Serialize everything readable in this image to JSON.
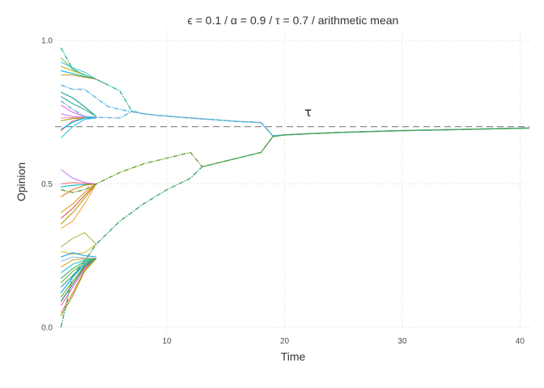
{
  "chart_data": {
    "type": "line",
    "title": "ϵ = 0.1 / α = 0.9 / τ = 0.7 / arithmetic mean",
    "xlabel": "Time",
    "ylabel": "Opinion",
    "xlim": [
      0.5,
      40.8
    ],
    "ylim": [
      -0.02,
      1.04
    ],
    "x_ticks": [
      10,
      20,
      30,
      40
    ],
    "y_ticks": [
      0.0,
      0.5,
      1.0
    ],
    "x_tick_labels": [
      "10",
      "20",
      "30",
      "40"
    ],
    "y_tick_labels": [
      "0.0",
      "0.5",
      "1.0"
    ],
    "grid": true,
    "legend": "none",
    "reference_line": {
      "value": 0.7,
      "label": "τ",
      "label_x": 22,
      "label_y": 0.735
    },
    "series": [
      {
        "color": "#2fb9a6",
        "lead": true,
        "x": [
          1,
          2,
          3,
          4,
          5,
          6,
          7,
          8,
          9,
          10,
          11,
          12,
          13,
          14,
          15,
          16,
          17,
          18,
          19,
          20,
          22,
          25,
          30,
          35,
          40.8
        ],
        "y": [
          0.975,
          0.9,
          0.88,
          0.865,
          0.845,
          0.825,
          0.755,
          0.745,
          0.74,
          0.737,
          0.733,
          0.73,
          0.727,
          0.724,
          0.721,
          0.718,
          0.716,
          0.714,
          0.668,
          0.671,
          0.675,
          0.68,
          0.686,
          0.69,
          0.695
        ]
      },
      {
        "color": "#56b4e9",
        "lead": true,
        "x": [
          1,
          2,
          3,
          4,
          5,
          6,
          7,
          8,
          9,
          10,
          11,
          12,
          13,
          14,
          15,
          16,
          17,
          18,
          19,
          20,
          22,
          25,
          30,
          35,
          40.8
        ],
        "y": [
          0.845,
          0.83,
          0.83,
          0.8,
          0.77,
          0.76,
          0.752,
          0.745,
          0.74,
          0.737,
          0.733,
          0.73,
          0.727,
          0.724,
          0.721,
          0.718,
          0.716,
          0.714,
          0.668,
          0.671,
          0.675,
          0.68,
          0.686,
          0.69,
          0.695
        ]
      },
      {
        "color": "#6aaed6",
        "lead": true,
        "x": [
          1,
          2,
          3,
          4,
          5,
          6,
          7,
          8,
          9,
          10,
          11,
          12,
          13,
          14,
          15,
          16,
          17,
          18,
          19,
          20,
          22,
          25,
          30,
          35,
          40.8
        ],
        "y": [
          0.79,
          0.76,
          0.735,
          0.732,
          0.731,
          0.73,
          0.752,
          0.745,
          0.74,
          0.737,
          0.733,
          0.73,
          0.727,
          0.724,
          0.721,
          0.718,
          0.716,
          0.714,
          0.668,
          0.671,
          0.675,
          0.68,
          0.686,
          0.69,
          0.695
        ]
      },
      {
        "color": "#6b9f2e",
        "lead": true,
        "x": [
          1,
          2,
          3,
          4,
          5,
          6,
          7,
          8,
          9,
          10,
          11,
          12,
          13,
          14,
          15,
          16,
          17,
          18,
          19,
          20,
          22,
          25,
          30,
          35,
          40.8
        ],
        "y": [
          0.48,
          0.47,
          0.48,
          0.5,
          0.52,
          0.54,
          0.555,
          0.57,
          0.58,
          0.59,
          0.6,
          0.61,
          0.56,
          0.57,
          0.58,
          0.59,
          0.6,
          0.61,
          0.665,
          0.671,
          0.675,
          0.68,
          0.686,
          0.69,
          0.695
        ]
      },
      {
        "color": "#3fa86b",
        "lead": true,
        "x": [
          1,
          2,
          3,
          4,
          5,
          6,
          7,
          8,
          9,
          10,
          11,
          12,
          13,
          14,
          15,
          16,
          17,
          18,
          19,
          20,
          22,
          25,
          30,
          35,
          40.8
        ],
        "y": [
          0.0,
          0.18,
          0.23,
          0.29,
          0.33,
          0.37,
          0.4,
          0.43,
          0.455,
          0.48,
          0.5,
          0.52,
          0.56,
          0.57,
          0.58,
          0.59,
          0.6,
          0.61,
          0.665,
          0.671,
          0.675,
          0.68,
          0.686,
          0.69,
          0.695
        ]
      },
      {
        "color": "#8cbf3f",
        "x": [
          1,
          2,
          3,
          4,
          5
        ],
        "y": [
          0.94,
          0.9,
          0.88,
          0.865,
          0.845
        ]
      },
      {
        "color": "#3ec8d8",
        "x": [
          1,
          2,
          3,
          4
        ],
        "y": [
          0.925,
          0.905,
          0.89,
          0.865
        ]
      },
      {
        "color": "#b8b82a",
        "x": [
          1,
          2,
          3,
          4
        ],
        "y": [
          0.91,
          0.895,
          0.88,
          0.865
        ]
      },
      {
        "color": "#00bfc4",
        "x": [
          1,
          2,
          3,
          4
        ],
        "y": [
          0.895,
          0.885,
          0.875,
          0.865
        ]
      },
      {
        "color": "#c79a1a",
        "x": [
          1,
          2,
          3,
          4
        ],
        "y": [
          0.88,
          0.88,
          0.872,
          0.865
        ]
      },
      {
        "color": "#1e9e8a",
        "x": [
          1,
          2,
          3,
          4
        ],
        "y": [
          0.82,
          0.8,
          0.77,
          0.735
        ]
      },
      {
        "color": "#2db3a0",
        "x": [
          1,
          2,
          3,
          4
        ],
        "y": [
          0.805,
          0.78,
          0.76,
          0.735
        ]
      },
      {
        "color": "#f8766d",
        "x": [
          1,
          2,
          3,
          4
        ],
        "y": [
          0.685,
          0.72,
          0.73,
          0.732
        ]
      },
      {
        "color": "#e76bf3",
        "x": [
          1,
          2,
          3,
          4
        ],
        "y": [
          0.775,
          0.75,
          0.735,
          0.733
        ]
      },
      {
        "color": "#c77cff",
        "x": [
          1,
          2,
          3,
          4
        ],
        "y": [
          0.745,
          0.735,
          0.733,
          0.732
        ]
      },
      {
        "color": "#ff8fb1",
        "x": [
          1,
          2,
          3,
          4
        ],
        "y": [
          0.73,
          0.731,
          0.732,
          0.732
        ]
      },
      {
        "color": "#a3a500",
        "x": [
          1,
          2,
          3,
          4
        ],
        "y": [
          0.72,
          0.728,
          0.73,
          0.731
        ]
      },
      {
        "color": "#00a9ff",
        "x": [
          1,
          2,
          3,
          4
        ],
        "y": [
          0.69,
          0.715,
          0.73,
          0.731
        ]
      },
      {
        "color": "#35c2e0",
        "x": [
          1,
          2,
          3,
          4
        ],
        "y": [
          0.66,
          0.7,
          0.725,
          0.73
        ]
      },
      {
        "color": "#c77cff",
        "x": [
          1,
          2,
          3,
          4
        ],
        "y": [
          0.55,
          0.52,
          0.505,
          0.5
        ]
      },
      {
        "color": "#f8766d",
        "x": [
          1,
          2,
          3,
          4
        ],
        "y": [
          0.5,
          0.505,
          0.502,
          0.5
        ]
      },
      {
        "color": "#00bfc4",
        "x": [
          1,
          2,
          3,
          4
        ],
        "y": [
          0.49,
          0.495,
          0.498,
          0.5
        ]
      },
      {
        "color": "#e7861b",
        "x": [
          1,
          2,
          3,
          4
        ],
        "y": [
          0.455,
          0.48,
          0.495,
          0.5
        ]
      },
      {
        "color": "#d4a017",
        "x": [
          1,
          2,
          3,
          4
        ],
        "y": [
          0.4,
          0.43,
          0.47,
          0.5
        ]
      },
      {
        "color": "#e05a4f",
        "x": [
          1,
          2,
          3,
          4
        ],
        "y": [
          0.38,
          0.415,
          0.46,
          0.5
        ]
      },
      {
        "color": "#b8a000",
        "x": [
          1,
          2,
          3,
          4
        ],
        "y": [
          0.36,
          0.4,
          0.45,
          0.5
        ]
      },
      {
        "color": "#f4a742",
        "x": [
          1,
          2,
          3,
          4
        ],
        "y": [
          0.345,
          0.37,
          0.43,
          0.5
        ]
      },
      {
        "color": "#a0c050",
        "x": [
          1,
          2,
          3,
          4
        ],
        "y": [
          0.28,
          0.31,
          0.33,
          0.29
        ]
      },
      {
        "color": "#d9c23b",
        "x": [
          1,
          2,
          3,
          4
        ],
        "y": [
          0.265,
          0.255,
          0.26,
          0.29
        ]
      },
      {
        "color": "#1e9ee0",
        "x": [
          1,
          2,
          3,
          4
        ],
        "y": [
          0.245,
          0.26,
          0.25,
          0.245
        ]
      },
      {
        "color": "#8fc2e8",
        "x": [
          1,
          2,
          3,
          4
        ],
        "y": [
          0.23,
          0.245,
          0.242,
          0.24
        ]
      },
      {
        "color": "#d6a21a",
        "x": [
          1,
          2,
          3,
          4
        ],
        "y": [
          0.21,
          0.235,
          0.24,
          0.24
        ]
      },
      {
        "color": "#2cc0d0",
        "x": [
          1,
          2,
          3,
          4
        ],
        "y": [
          0.19,
          0.22,
          0.235,
          0.24
        ]
      },
      {
        "color": "#35b779",
        "x": [
          1,
          2,
          3,
          4
        ],
        "y": [
          0.17,
          0.205,
          0.23,
          0.24
        ]
      },
      {
        "color": "#79b23c",
        "x": [
          1,
          2,
          3,
          4
        ],
        "y": [
          0.155,
          0.195,
          0.225,
          0.24
        ]
      },
      {
        "color": "#2a9d8f",
        "x": [
          1,
          2,
          3,
          4
        ],
        "y": [
          0.14,
          0.18,
          0.22,
          0.24
        ]
      },
      {
        "color": "#00a9ff",
        "x": [
          1,
          2,
          3,
          4
        ],
        "y": [
          0.12,
          0.175,
          0.22,
          0.24
        ]
      },
      {
        "color": "#66a61e",
        "x": [
          1,
          2,
          3,
          4
        ],
        "y": [
          0.105,
          0.16,
          0.215,
          0.24
        ]
      },
      {
        "color": "#1b7f7a",
        "x": [
          1,
          2,
          3,
          4
        ],
        "y": [
          0.09,
          0.15,
          0.21,
          0.24
        ]
      },
      {
        "color": "#ff61c3",
        "x": [
          1,
          2,
          3,
          4
        ],
        "y": [
          0.075,
          0.14,
          0.205,
          0.24
        ]
      },
      {
        "color": "#f8766d",
        "x": [
          1,
          2,
          3,
          4
        ],
        "y": [
          0.05,
          0.12,
          0.2,
          0.24
        ]
      },
      {
        "color": "#7cae00",
        "x": [
          1,
          2,
          3,
          4
        ],
        "y": [
          0.04,
          0.11,
          0.195,
          0.24
        ]
      }
    ]
  }
}
